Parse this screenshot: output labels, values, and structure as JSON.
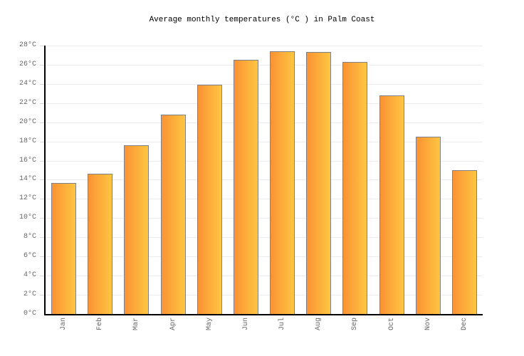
{
  "title": "Average monthly temperatures (°C ) in Palm Coast",
  "colors": {
    "background": "#ffffff",
    "axis": "#000000",
    "gridline": "#ececec",
    "tick_mark": "#d8d8d8",
    "label_text": "#666666",
    "title_text": "#000000",
    "bar_gradient_left": "#fa9233",
    "bar_gradient_right": "#fec642",
    "bar_border": "#808089"
  },
  "chart_data": {
    "type": "bar",
    "title": "Average monthly temperatures (°C ) in Palm Coast",
    "categories": [
      "Jan",
      "Feb",
      "Mar",
      "Apr",
      "May",
      "Jun",
      "Jul",
      "Aug",
      "Sep",
      "Oct",
      "Nov",
      "Dec"
    ],
    "values": [
      13.7,
      14.6,
      17.6,
      20.8,
      23.9,
      26.5,
      27.4,
      27.3,
      26.3,
      22.8,
      18.5,
      15.0
    ],
    "series_name": "Average monthly temperature (°C)",
    "xlabel": "",
    "ylabel": "",
    "ylim": [
      0,
      28
    ],
    "ytick_step": 2,
    "ytick_labels": [
      "0°C",
      "2°C",
      "4°C",
      "6°C",
      "8°C",
      "10°C",
      "12°C",
      "14°C",
      "16°C",
      "18°C",
      "20°C",
      "22°C",
      "24°C",
      "26°C",
      "28°C"
    ],
    "grid": "horizontal",
    "legend": "none",
    "bar_orientation": "vertical"
  }
}
